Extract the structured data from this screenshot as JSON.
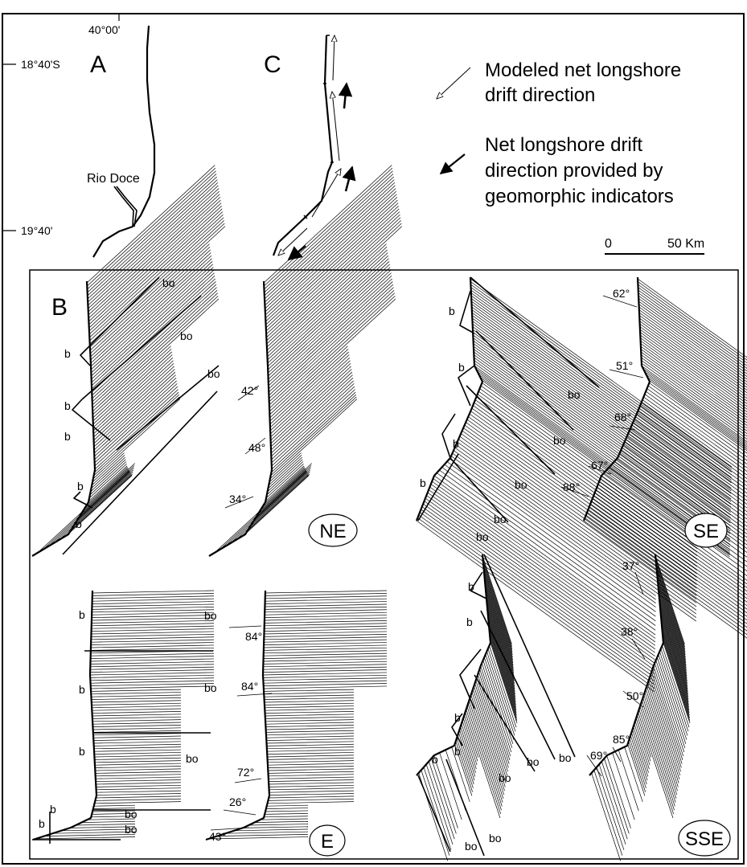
{
  "map": {
    "longitude_label": "40°00'",
    "lat_top": "18°40'S",
    "lat_bottom": "19°40'",
    "panel_a": "A",
    "panel_c": "C",
    "river": "Rio Doce"
  },
  "legend": {
    "modeled_line1": "Modeled net longshore",
    "modeled_line2": "drift direction",
    "geo_line1": "Net longshore drift",
    "geo_line2": "direction provided by",
    "geo_line3": "geomorphic indicators",
    "scale_zero": "0",
    "scale_end": "50 Km"
  },
  "panel_b": {
    "label": "B",
    "ne": {
      "badge": "NE",
      "angles": [
        "42°",
        "48°",
        "34°"
      ],
      "b": "b",
      "bo": "bo"
    },
    "se": {
      "badge": "SE",
      "angles": [
        "62°",
        "51°",
        "68°",
        "67°",
        "88°"
      ],
      "b": "b",
      "bo": "bo"
    },
    "e": {
      "badge": "E",
      "angles": [
        "84°",
        "84°",
        "72°",
        "26°",
        "43°"
      ],
      "b": "b",
      "bo": "bo"
    },
    "sse": {
      "badge": "SSE",
      "angles": [
        "37°",
        "38°",
        "50°",
        "85°",
        "69°"
      ],
      "b": "b",
      "bo": "bo"
    }
  }
}
